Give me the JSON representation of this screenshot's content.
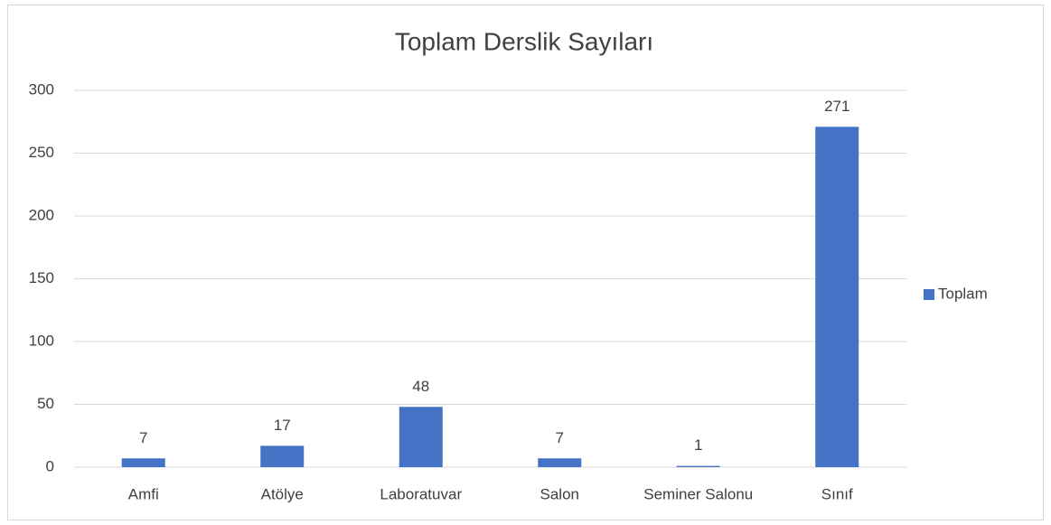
{
  "chart_data": {
    "type": "bar",
    "title": "Toplam Derslik Sayıları",
    "categories": [
      "Amfi",
      "Atölye",
      "Laboratuvar",
      "Salon",
      "Seminer Salonu",
      "Sınıf"
    ],
    "series": [
      {
        "name": "Toplam",
        "color": "#4472c4",
        "values": [
          7,
          17,
          48,
          7,
          1,
          271
        ]
      }
    ],
    "ylim": [
      0,
      300
    ],
    "yticks": [
      0,
      50,
      100,
      150,
      200,
      250,
      300
    ],
    "grid": true,
    "legend": "right",
    "data_labels": true
  }
}
